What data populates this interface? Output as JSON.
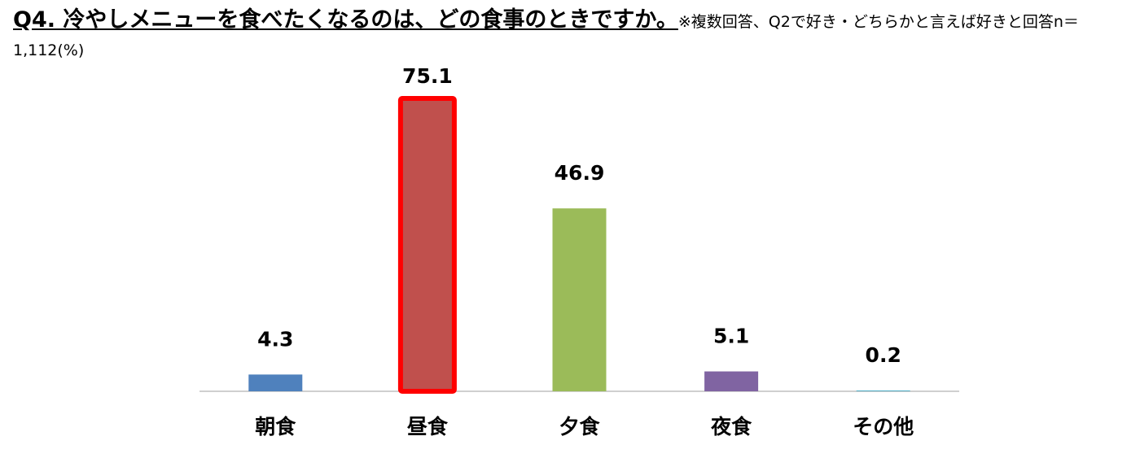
{
  "chart_data": {
    "type": "bar",
    "title": "Q4. 冷やしメニューを食べたくなるのは、どの食事のときですか。",
    "subtitle": "※複数回答、Q2で好き・どちらかと言えば好きと回答n＝1,112(%)",
    "categories": [
      "朝食",
      "昼食",
      "夕食",
      "夜食",
      "その他"
    ],
    "values": [
      4.3,
      75.1,
      46.9,
      5.1,
      0.2
    ],
    "colors": [
      "#4f81bd",
      "#c0504d",
      "#9bbb59",
      "#8064a2",
      "#4bacc6"
    ],
    "edgecolors": [
      null,
      "#ff0000",
      null,
      null,
      null
    ]
  }
}
